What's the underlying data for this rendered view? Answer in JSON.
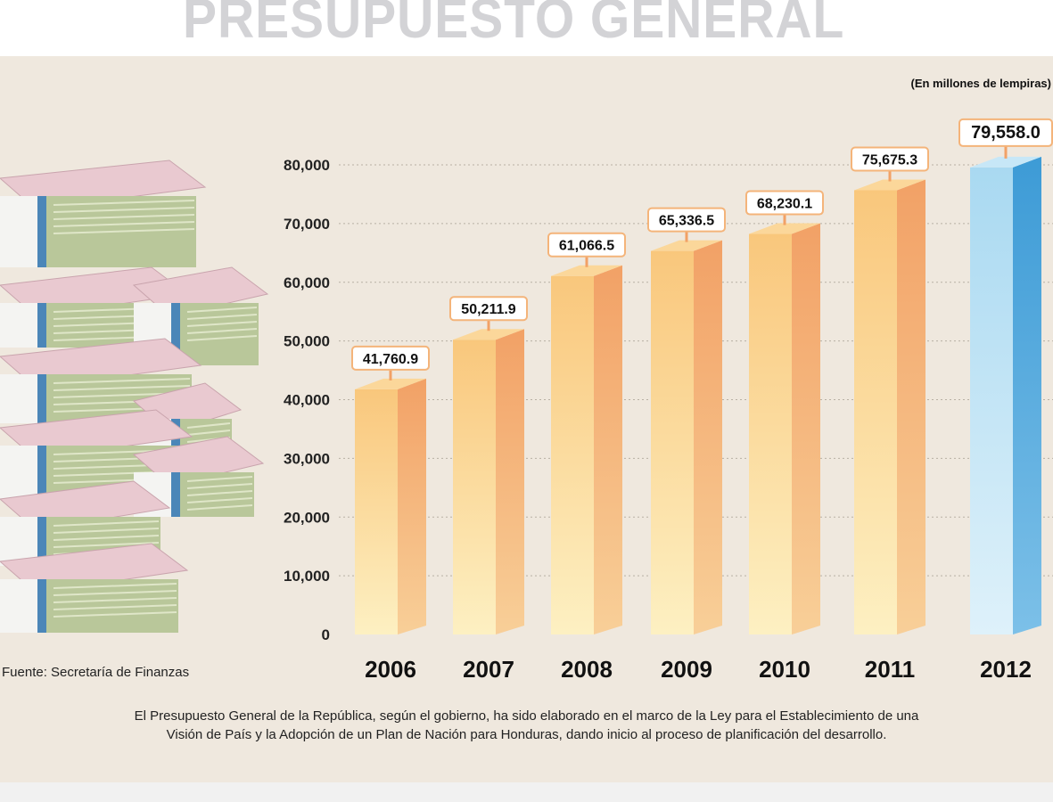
{
  "chart_data": {
    "type": "bar",
    "title": "PRESUPUESTO GENERAL",
    "unit_note": "(En millones de lempiras)",
    "categories": [
      "2006",
      "2007",
      "2008",
      "2009",
      "2010",
      "2011",
      "2012"
    ],
    "values": [
      41760.9,
      50211.9,
      61066.5,
      65336.5,
      68230.1,
      75675.3,
      79558.0
    ],
    "data_labels": [
      "41,760.9",
      "50,211.9",
      "61,066.5",
      "65,336.5",
      "68,230.1",
      "75,675.3",
      "79,558.0"
    ],
    "ylim": [
      0,
      80000
    ],
    "yticks": [
      0,
      10000,
      20000,
      30000,
      40000,
      50000,
      60000,
      70000,
      80000
    ],
    "ytick_labels": [
      "0",
      "10,000",
      "20,000",
      "30,000",
      "40,000",
      "50,000",
      "60,000",
      "70,000",
      "80,000"
    ],
    "grid": true,
    "colors": {
      "default_bar": "#f7c27a",
      "highlight_bar": "#8ecbea",
      "background": "#efe8de"
    },
    "highlight_category": "2012"
  },
  "source": "Fuente: Secretaría de Finanzas",
  "note_line1": "El Presupuesto General de la República, según el gobierno, ha sido elaborado en el marco de la Ley para el Establecimiento de una",
  "note_line2": "Visión de País y la Adopción de un Plan de Nación para Honduras, dando inicio al proceso de planificación del desarrollo."
}
